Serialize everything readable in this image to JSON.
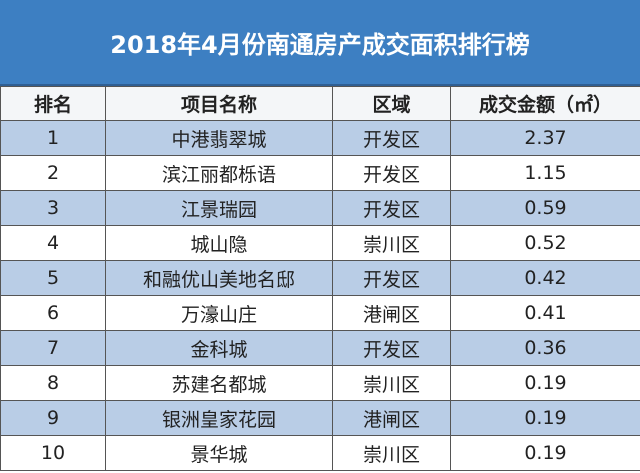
{
  "header": {
    "title": "2018年4月份南通房产成交面积排行榜"
  },
  "table": {
    "columns": [
      "排名",
      "项目名称",
      "区域",
      "成交金额（㎡）"
    ],
    "rows": [
      [
        1,
        "中港翡翠城",
        "开发区",
        2.37
      ],
      [
        2,
        "滨江丽都栎语",
        "开发区",
        1.15
      ],
      [
        3,
        "江景瑞园",
        "开发区",
        0.59
      ],
      [
        4,
        "城山隐",
        "崇川区",
        0.52
      ],
      [
        5,
        "和融优山美地名邸",
        "开发区",
        0.42
      ],
      [
        6,
        "万濠山庄",
        "港闸区",
        0.41
      ],
      [
        7,
        "金科城",
        "开发区",
        0.36
      ],
      [
        8,
        "苏建名都城",
        "崇川区",
        0.19
      ],
      [
        9,
        "银洲皇家花园",
        "港闸区",
        0.19
      ],
      [
        10,
        "景华城",
        "崇川区",
        0.19
      ]
    ]
  }
}
